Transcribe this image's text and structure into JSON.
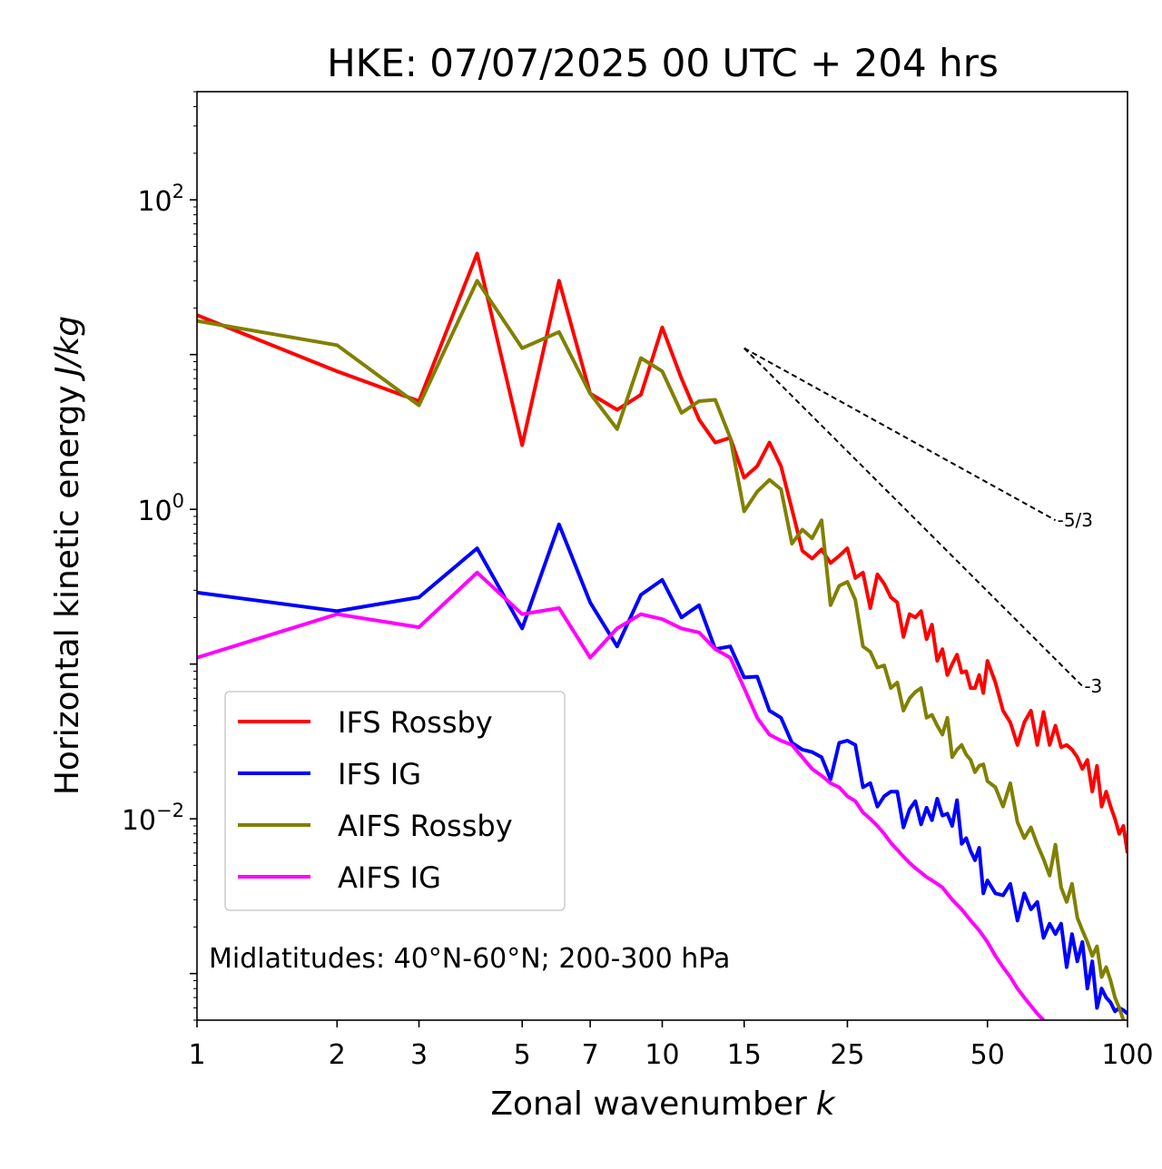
{
  "chart_data": {
    "type": "line",
    "title": "HKE: 07/07/2025 00 UTC + 204 hrs",
    "xlabel": "Zonal wavenumber",
    "xlabel_italic": "k",
    "ylabel": "Horizontal kinetic energy",
    "ylabel_italic": "J/kg",
    "xscale": "log",
    "yscale": "log",
    "xlim": [
      1,
      100
    ],
    "ylim": [
      0.0005,
      500
    ],
    "x_ticks": [
      {
        "value": 1,
        "label": "1"
      },
      {
        "value": 2,
        "label": "2"
      },
      {
        "value": 3,
        "label": "3"
      },
      {
        "value": 5,
        "label": "5"
      },
      {
        "value": 7,
        "label": "7"
      },
      {
        "value": 10,
        "label": "10"
      },
      {
        "value": 15,
        "label": "15"
      },
      {
        "value": 25,
        "label": "25"
      },
      {
        "value": 50,
        "label": "50"
      },
      {
        "value": 100,
        "label": "100"
      }
    ],
    "y_ticks": [
      {
        "value": 0.01,
        "base": "10",
        "exp": "−2"
      },
      {
        "value": 1,
        "base": "10",
        "exp": "0"
      },
      {
        "value": 100,
        "base": "10",
        "exp": "2"
      }
    ],
    "legend_position": "lower-left",
    "annotation": "Midlatitudes: 40°N-60°N; 200-300 hPa",
    "reference_lines": [
      {
        "label": "-5/3",
        "slope": -1.6667,
        "from": [
          15,
          11.0
        ],
        "to": [
          70,
          0.85
        ]
      },
      {
        "label": "-3",
        "slope": -3,
        "from": [
          15,
          11.0
        ],
        "to": [
          80,
          0.072
        ]
      }
    ],
    "series": [
      {
        "name": "IFS Rossby",
        "color": "#ff0000",
        "points": [
          [
            1,
            18
          ],
          [
            2,
            7.8
          ],
          [
            3,
            5.0
          ],
          [
            4,
            45
          ],
          [
            5,
            2.6
          ],
          [
            6,
            30
          ],
          [
            7,
            5.6
          ],
          [
            8,
            4.4
          ],
          [
            9,
            5.5
          ],
          [
            10,
            15
          ],
          [
            11,
            7
          ],
          [
            12,
            3.8
          ],
          [
            13,
            2.7
          ],
          [
            14,
            2.9
          ],
          [
            15,
            1.6
          ],
          [
            16,
            1.9
          ],
          [
            17,
            2.7
          ],
          [
            18,
            1.9
          ],
          [
            19,
            1.0
          ],
          [
            20,
            0.54
          ],
          [
            21,
            0.48
          ],
          [
            22,
            0.55
          ],
          [
            23,
            0.45
          ],
          [
            24,
            0.5
          ],
          [
            25,
            0.56
          ],
          [
            26,
            0.36
          ],
          [
            27,
            0.39
          ],
          [
            28,
            0.23
          ],
          [
            29,
            0.38
          ],
          [
            30,
            0.33
          ],
          [
            31,
            0.27
          ],
          [
            32,
            0.25
          ],
          [
            33,
            0.15
          ],
          [
            34,
            0.21
          ],
          [
            35,
            0.2
          ],
          [
            36,
            0.22
          ],
          [
            37,
            0.145
          ],
          [
            38,
            0.18
          ],
          [
            39,
            0.105
          ],
          [
            40,
            0.125
          ],
          [
            41,
            0.085
          ],
          [
            42,
            0.1
          ],
          [
            43,
            0.115
          ],
          [
            44,
            0.088
          ],
          [
            45,
            0.09
          ],
          [
            46,
            0.07
          ],
          [
            47,
            0.07
          ],
          [
            48,
            0.085
          ],
          [
            49,
            0.065
          ],
          [
            50,
            0.105
          ],
          [
            52,
            0.076
          ],
          [
            54,
            0.05
          ],
          [
            56,
            0.042
          ],
          [
            58,
            0.03
          ],
          [
            60,
            0.042
          ],
          [
            62,
            0.05
          ],
          [
            64,
            0.03
          ],
          [
            66,
            0.049
          ],
          [
            68,
            0.03
          ],
          [
            70,
            0.04
          ],
          [
            72,
            0.029
          ],
          [
            74,
            0.03
          ],
          [
            76,
            0.028
          ],
          [
            78,
            0.025
          ],
          [
            80,
            0.021
          ],
          [
            82,
            0.024
          ],
          [
            84,
            0.015
          ],
          [
            86,
            0.022
          ],
          [
            88,
            0.012
          ],
          [
            90,
            0.015
          ],
          [
            92,
            0.012
          ],
          [
            94,
            0.01
          ],
          [
            96,
            0.008
          ],
          [
            98,
            0.009
          ],
          [
            100,
            0.006
          ]
        ]
      },
      {
        "name": "IFS IG",
        "color": "#0000ff",
        "points": [
          [
            1,
            0.29
          ],
          [
            2,
            0.22
          ],
          [
            3,
            0.27
          ],
          [
            4,
            0.56
          ],
          [
            5,
            0.17
          ],
          [
            6,
            0.8
          ],
          [
            7,
            0.25
          ],
          [
            8,
            0.13
          ],
          [
            9,
            0.28
          ],
          [
            10,
            0.35
          ],
          [
            11,
            0.2
          ],
          [
            12,
            0.24
          ],
          [
            13,
            0.125
          ],
          [
            14,
            0.13
          ],
          [
            15,
            0.082
          ],
          [
            16,
            0.083
          ],
          [
            17,
            0.05
          ],
          [
            18,
            0.045
          ],
          [
            19,
            0.031
          ],
          [
            20,
            0.028
          ],
          [
            21,
            0.027
          ],
          [
            22,
            0.025
          ],
          [
            23,
            0.018
          ],
          [
            24,
            0.031
          ],
          [
            25,
            0.032
          ],
          [
            26,
            0.03
          ],
          [
            27,
            0.016
          ],
          [
            28,
            0.017
          ],
          [
            29,
            0.012
          ],
          [
            30,
            0.014
          ],
          [
            31,
            0.015
          ],
          [
            32,
            0.015
          ],
          [
            33,
            0.0088
          ],
          [
            34,
            0.0115
          ],
          [
            35,
            0.013
          ],
          [
            36,
            0.0092
          ],
          [
            37,
            0.0118
          ],
          [
            38,
            0.0098
          ],
          [
            39,
            0.0135
          ],
          [
            40,
            0.0105
          ],
          [
            41,
            0.0108
          ],
          [
            42,
            0.009
          ],
          [
            43,
            0.0132
          ],
          [
            44,
            0.0069
          ],
          [
            45,
            0.0075
          ],
          [
            46,
            0.0062
          ],
          [
            47,
            0.0054
          ],
          [
            48,
            0.0065
          ],
          [
            49,
            0.0033
          ],
          [
            50,
            0.004
          ],
          [
            52,
            0.0033
          ],
          [
            54,
            0.0032
          ],
          [
            56,
            0.0038
          ],
          [
            58,
            0.0022
          ],
          [
            60,
            0.0033
          ],
          [
            62,
            0.0026
          ],
          [
            64,
            0.0029
          ],
          [
            66,
            0.0017
          ],
          [
            68,
            0.0021
          ],
          [
            70,
            0.0018
          ],
          [
            72,
            0.0021
          ],
          [
            74,
            0.0011
          ],
          [
            76,
            0.0018
          ],
          [
            78,
            0.0012
          ],
          [
            80,
            0.0016
          ],
          [
            82,
            0.0008
          ],
          [
            84,
            0.0012
          ],
          [
            86,
            0.0006
          ],
          [
            88,
            0.0008
          ],
          [
            90,
            0.0007
          ],
          [
            92,
            0.00065
          ],
          [
            94,
            0.00057
          ],
          [
            96,
            0.0006
          ],
          [
            98,
            0.00058
          ],
          [
            100,
            0.00055
          ]
        ]
      },
      {
        "name": "AIFS Rossby",
        "color": "#808000",
        "points": [
          [
            1,
            16.5
          ],
          [
            2,
            11.5
          ],
          [
            3,
            4.7
          ],
          [
            4,
            30
          ],
          [
            5,
            11
          ],
          [
            6,
            14
          ],
          [
            7,
            5.6
          ],
          [
            8,
            3.3
          ],
          [
            9,
            9.5
          ],
          [
            10,
            7.8
          ],
          [
            11,
            4.2
          ],
          [
            12,
            5.0
          ],
          [
            13,
            5.1
          ],
          [
            14,
            2.9
          ],
          [
            15,
            0.97
          ],
          [
            16,
            1.3
          ],
          [
            17,
            1.55
          ],
          [
            18,
            1.35
          ],
          [
            19,
            0.6
          ],
          [
            20,
            0.74
          ],
          [
            21,
            0.65
          ],
          [
            22,
            0.85
          ],
          [
            23,
            0.24
          ],
          [
            24,
            0.32
          ],
          [
            25,
            0.34
          ],
          [
            26,
            0.26
          ],
          [
            27,
            0.13
          ],
          [
            28,
            0.12
          ],
          [
            29,
            0.095
          ],
          [
            30,
            0.098
          ],
          [
            31,
            0.07
          ],
          [
            32,
            0.076
          ],
          [
            33,
            0.05
          ],
          [
            34,
            0.06
          ],
          [
            35,
            0.066
          ],
          [
            36,
            0.07
          ],
          [
            37,
            0.045
          ],
          [
            38,
            0.047
          ],
          [
            39,
            0.04
          ],
          [
            40,
            0.035
          ],
          [
            41,
            0.045
          ],
          [
            42,
            0.025
          ],
          [
            43,
            0.028
          ],
          [
            44,
            0.03
          ],
          [
            45,
            0.026
          ],
          [
            46,
            0.024
          ],
          [
            47,
            0.02
          ],
          [
            48,
            0.022
          ],
          [
            49,
            0.0225
          ],
          [
            50,
            0.0175
          ],
          [
            52,
            0.016
          ],
          [
            54,
            0.012
          ],
          [
            56,
            0.017
          ],
          [
            58,
            0.0095
          ],
          [
            60,
            0.0075
          ],
          [
            62,
            0.0088
          ],
          [
            64,
            0.0068
          ],
          [
            66,
            0.0055
          ],
          [
            68,
            0.0043
          ],
          [
            70,
            0.0068
          ],
          [
            72,
            0.0036
          ],
          [
            74,
            0.0029
          ],
          [
            76,
            0.0038
          ],
          [
            78,
            0.0023
          ],
          [
            80,
            0.0019
          ],
          [
            82,
            0.0016
          ],
          [
            84,
            0.0013
          ],
          [
            86,
            0.0015
          ],
          [
            88,
            0.00095
          ],
          [
            90,
            0.0011
          ],
          [
            92,
            0.0009
          ],
          [
            94,
            0.0007
          ],
          [
            96,
            0.0006
          ],
          [
            98,
            0.0005
          ],
          [
            100,
            0.0004
          ]
        ]
      },
      {
        "name": "AIFS IG",
        "color": "#ff00ff",
        "points": [
          [
            1,
            0.11
          ],
          [
            2,
            0.21
          ],
          [
            3,
            0.173
          ],
          [
            4,
            0.39
          ],
          [
            5,
            0.21
          ],
          [
            6,
            0.23
          ],
          [
            7,
            0.11
          ],
          [
            8,
            0.17
          ],
          [
            9,
            0.21
          ],
          [
            10,
            0.195
          ],
          [
            11,
            0.17
          ],
          [
            12,
            0.16
          ],
          [
            13,
            0.125
          ],
          [
            14,
            0.11
          ],
          [
            15,
            0.07
          ],
          [
            16,
            0.045
          ],
          [
            17,
            0.035
          ],
          [
            18,
            0.032
          ],
          [
            19,
            0.03
          ],
          [
            20,
            0.025
          ],
          [
            21,
            0.021
          ],
          [
            22,
            0.019
          ],
          [
            23,
            0.017
          ],
          [
            24,
            0.016
          ],
          [
            25,
            0.014
          ],
          [
            26,
            0.013
          ],
          [
            27,
            0.011
          ],
          [
            28,
            0.01
          ],
          [
            29,
            0.009
          ],
          [
            30,
            0.008
          ],
          [
            31,
            0.007
          ],
          [
            32,
            0.0063
          ],
          [
            33,
            0.0057
          ],
          [
            34,
            0.0052
          ],
          [
            35,
            0.0048
          ],
          [
            36,
            0.0045
          ],
          [
            37,
            0.0042
          ],
          [
            38,
            0.004
          ],
          [
            39,
            0.0038
          ],
          [
            40,
            0.0036
          ],
          [
            42,
            0.003
          ],
          [
            44,
            0.0026
          ],
          [
            46,
            0.0022
          ],
          [
            48,
            0.0019
          ],
          [
            50,
            0.0016
          ],
          [
            52,
            0.0013
          ],
          [
            54,
            0.0011
          ],
          [
            56,
            0.00095
          ],
          [
            58,
            0.0008
          ],
          [
            60,
            0.0007
          ],
          [
            62,
            0.00062
          ],
          [
            64,
            0.00055
          ],
          [
            66,
            0.0005
          ]
        ]
      }
    ]
  }
}
